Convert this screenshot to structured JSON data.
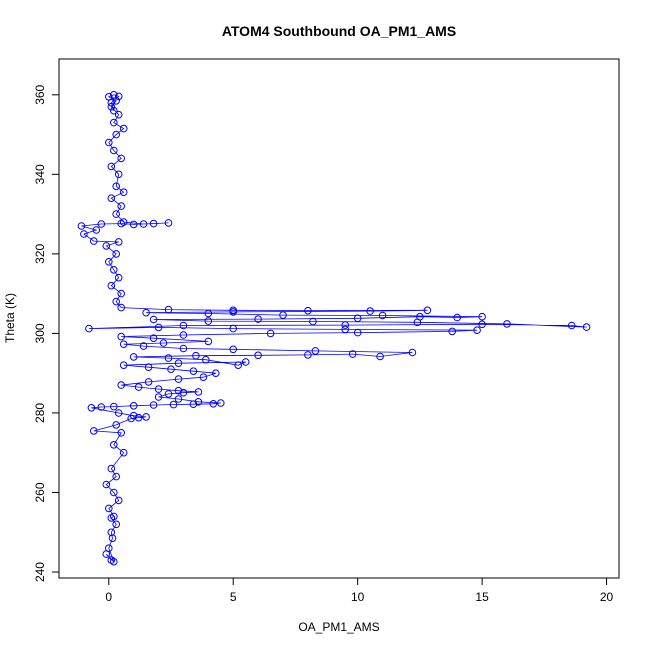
{
  "chart_data": {
    "type": "scatter",
    "title": "ATOM4 Southbound OA_PM1_AMS",
    "xlabel": "OA_PM1_AMS",
    "ylabel": "Theta (K)",
    "xlim": [
      -2,
      20.5
    ],
    "ylim": [
      238.5,
      369
    ],
    "x_ticks": [
      0,
      5,
      10,
      15,
      20
    ],
    "y_ticks": [
      240,
      260,
      280,
      300,
      320,
      340,
      360
    ],
    "grid": false,
    "legend": "none",
    "style": {
      "color": "#0000ff",
      "marker": "open-circle",
      "connected": true
    },
    "series": [
      {
        "points": [
          [
            0.1,
            243
          ],
          [
            -0.1,
            244.5
          ],
          [
            0.2,
            242.6
          ],
          [
            0.0,
            246
          ],
          [
            0.15,
            248.5
          ],
          [
            0.1,
            250
          ],
          [
            0.3,
            252
          ],
          [
            0.1,
            253.6
          ],
          [
            0.2,
            254
          ],
          [
            0.0,
            256
          ],
          [
            0.4,
            258
          ],
          [
            0.2,
            260
          ],
          [
            -0.1,
            262
          ],
          [
            0.3,
            264
          ],
          [
            0.1,
            266
          ],
          [
            0.6,
            270
          ],
          [
            0.2,
            272
          ],
          [
            0.5,
            275
          ],
          [
            -0.6,
            275.5
          ],
          [
            0.3,
            277
          ],
          [
            0.9,
            278.6
          ],
          [
            1.2,
            278.8
          ],
          [
            1.5,
            279
          ],
          [
            1.0,
            279.3
          ],
          [
            0.4,
            280
          ],
          [
            -0.7,
            281.3
          ],
          [
            -0.3,
            281.5
          ],
          [
            0.2,
            281.6
          ],
          [
            1.0,
            281.8
          ],
          [
            1.8,
            282
          ],
          [
            2.6,
            282.1
          ],
          [
            3.4,
            282.2
          ],
          [
            4.2,
            282.3
          ],
          [
            4.5,
            282.5
          ],
          [
            3.6,
            282.8
          ],
          [
            2.8,
            283.5
          ],
          [
            2.0,
            284
          ],
          [
            2.4,
            284.8
          ],
          [
            3.0,
            285.1
          ],
          [
            3.6,
            285.3
          ],
          [
            2.8,
            285.6
          ],
          [
            2.0,
            286
          ],
          [
            1.2,
            286.5
          ],
          [
            0.5,
            287
          ],
          [
            1.6,
            287.8
          ],
          [
            2.8,
            288.5
          ],
          [
            3.8,
            289
          ],
          [
            4.3,
            290
          ],
          [
            3.4,
            290.5
          ],
          [
            2.5,
            291
          ],
          [
            1.6,
            291.5
          ],
          [
            0.6,
            292
          ],
          [
            2.8,
            292.5
          ],
          [
            5.5,
            292.8
          ],
          [
            5.2,
            292
          ],
          [
            3.9,
            293.4
          ],
          [
            2.4,
            293.8
          ],
          [
            1.0,
            294.1
          ],
          [
            3.5,
            294.4
          ],
          [
            6.0,
            294.5
          ],
          [
            8.0,
            294.6
          ],
          [
            9.8,
            294.8
          ],
          [
            10.9,
            294.2
          ],
          [
            12.2,
            295.2
          ],
          [
            8.3,
            295.6
          ],
          [
            5.0,
            296
          ],
          [
            3.0,
            296.2
          ],
          [
            1.4,
            296.8
          ],
          [
            0.6,
            297.3
          ],
          [
            2.2,
            297.6
          ],
          [
            4.0,
            298
          ],
          [
            1.8,
            298.8
          ],
          [
            0.5,
            299.2
          ],
          [
            3.0,
            299.6
          ],
          [
            6.5,
            300
          ],
          [
            10.0,
            300.2
          ],
          [
            13.8,
            300.5
          ],
          [
            14.8,
            300.8
          ],
          [
            9.5,
            301
          ],
          [
            5.0,
            301.2
          ],
          [
            2.0,
            301.5
          ],
          [
            -0.8,
            301.2
          ],
          [
            3.0,
            302
          ],
          [
            9.5,
            302.1
          ],
          [
            15.0,
            302.3
          ],
          [
            18.6,
            302
          ],
          [
            19.2,
            301.6
          ],
          [
            16.0,
            302.4
          ],
          [
            12.4,
            302.8
          ],
          [
            8.2,
            303
          ],
          [
            4.0,
            303.1
          ],
          [
            1.8,
            303.5
          ],
          [
            6.0,
            303.6
          ],
          [
            10.0,
            303.8
          ],
          [
            12.5,
            304.2
          ],
          [
            14.0,
            304
          ],
          [
            15.0,
            304.2
          ],
          [
            11.0,
            304.5
          ],
          [
            7.0,
            304.6
          ],
          [
            4.0,
            305
          ],
          [
            1.5,
            305.2
          ],
          [
            5.0,
            305.4
          ],
          [
            10.5,
            305.6
          ],
          [
            12.8,
            305.8
          ],
          [
            8.0,
            305.7
          ],
          [
            5.0,
            305.8
          ],
          [
            2.4,
            306
          ],
          [
            0.5,
            306.5
          ],
          [
            0.3,
            308
          ],
          [
            0.5,
            310
          ],
          [
            0.1,
            312
          ],
          [
            0.4,
            314
          ],
          [
            0.2,
            316
          ],
          [
            0.0,
            318
          ],
          [
            0.3,
            320
          ],
          [
            -0.1,
            322
          ],
          [
            0.4,
            323
          ],
          [
            -0.6,
            323.2
          ],
          [
            -1.0,
            325
          ],
          [
            -0.5,
            326
          ],
          [
            -1.1,
            327
          ],
          [
            -0.3,
            327.5
          ],
          [
            0.5,
            327.6
          ],
          [
            1.0,
            327.4
          ],
          [
            1.8,
            327.6
          ],
          [
            2.4,
            327.8
          ],
          [
            1.4,
            327.5
          ],
          [
            0.6,
            328
          ],
          [
            0.3,
            330
          ],
          [
            0.5,
            332
          ],
          [
            0.1,
            334
          ],
          [
            0.6,
            335.5
          ],
          [
            0.3,
            337
          ],
          [
            0.4,
            340
          ],
          [
            0.1,
            342
          ],
          [
            0.5,
            344
          ],
          [
            0.2,
            346
          ],
          [
            0.0,
            348
          ],
          [
            0.3,
            350
          ],
          [
            0.6,
            351.5
          ],
          [
            0.2,
            353
          ],
          [
            0.4,
            355
          ],
          [
            0.1,
            357
          ],
          [
            0.3,
            358.5
          ],
          [
            0.0,
            359.5
          ],
          [
            0.2,
            360
          ],
          [
            0.4,
            359.6
          ],
          [
            0.1,
            358
          ],
          [
            0.2,
            356
          ]
        ]
      }
    ]
  }
}
